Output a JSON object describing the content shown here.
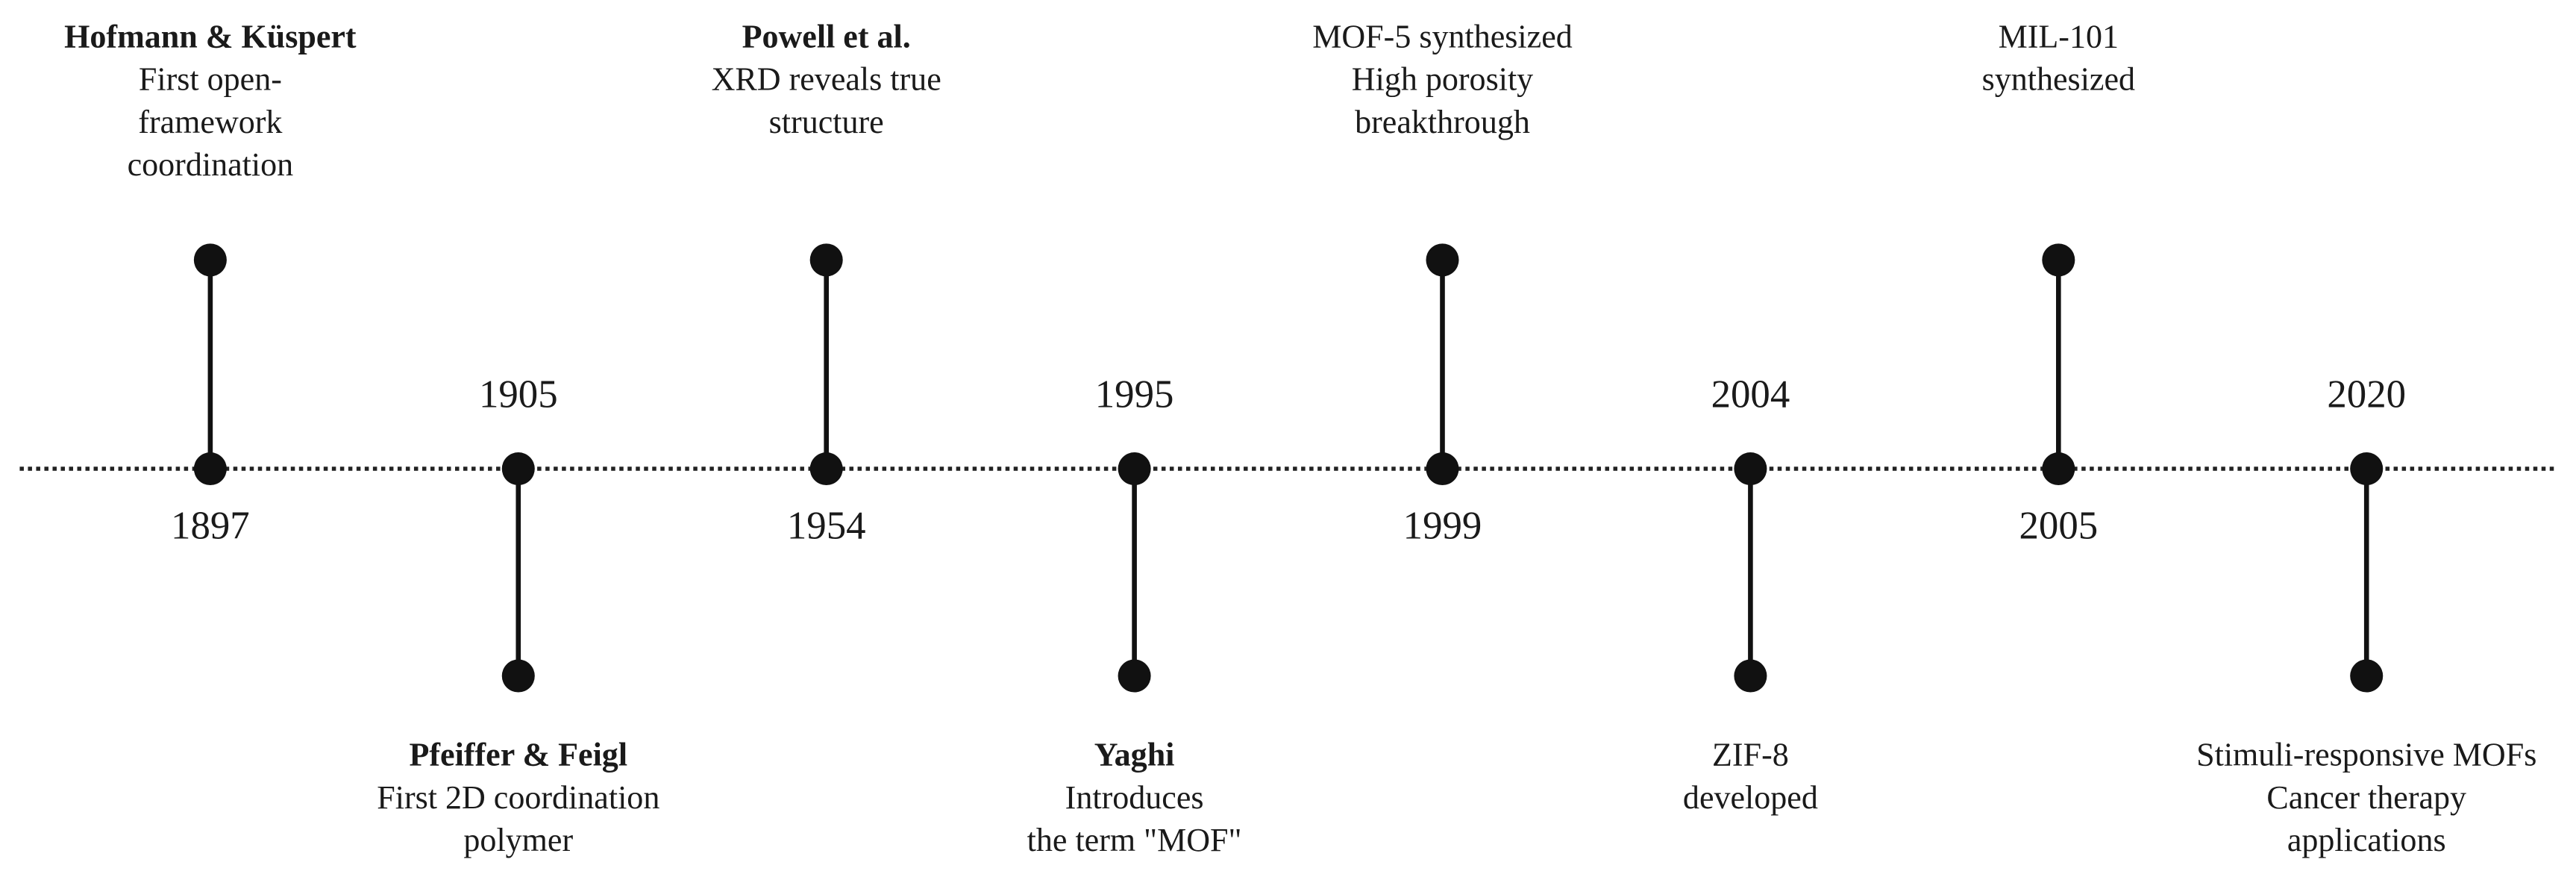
{
  "events": [
    {
      "year": "1897",
      "title": "Hofmann & Küspert",
      "lines": [
        "First open-",
        "framework",
        "coordination"
      ]
    },
    {
      "year": "1905",
      "title": "Pfeiffer & Feigl",
      "lines": [
        "First 2D coordination",
        "polymer"
      ]
    },
    {
      "year": "1954",
      "title": "Powell et al.",
      "lines": [
        "XRD reveals true",
        "structure"
      ]
    },
    {
      "year": "1995",
      "title": "Yaghi",
      "lines": [
        "Introduces",
        "the term \"MOF\""
      ]
    },
    {
      "year": "1999",
      "lines": [
        "MOF-5 synthesized",
        "High porosity",
        "breakthrough"
      ]
    },
    {
      "year": "2004",
      "lines": [
        "ZIF-8",
        "developed"
      ]
    },
    {
      "year": "2005",
      "lines": [
        "MIL-101",
        "synthesized"
      ]
    },
    {
      "year": "2020",
      "lines": [
        "Stimuli-responsive MOFs",
        "Cancer therapy",
        "applications"
      ]
    }
  ]
}
